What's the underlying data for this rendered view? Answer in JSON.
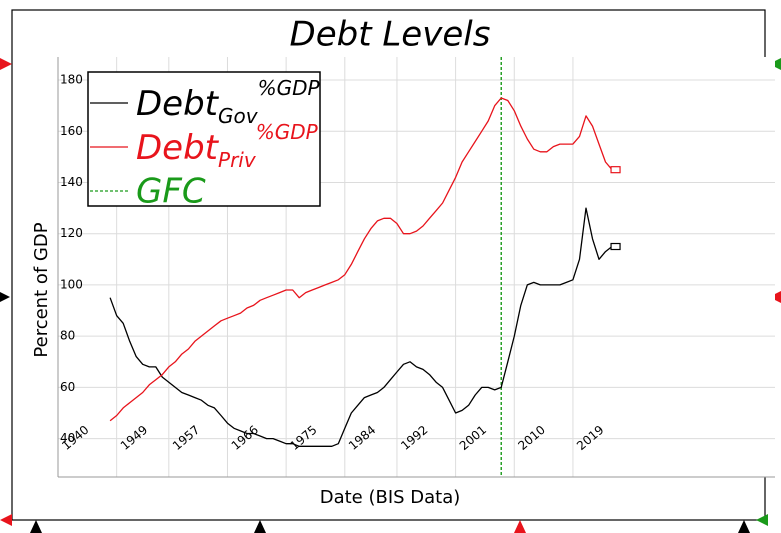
{
  "chart_data": {
    "type": "line",
    "title": "Debt Levels",
    "x_label": "Date (BIS Data)",
    "y_label": "Percent of GDP",
    "xlim": [
      1940,
      2050
    ],
    "xticks": [
      1940,
      1949,
      1957,
      1966,
      1975,
      1984,
      1992,
      2001,
      2010,
      2019
    ],
    "ylim": [
      25,
      189
    ],
    "yticks": [
      40,
      60,
      80,
      100,
      120,
      140,
      160,
      180
    ],
    "grid": true,
    "legend": "top-left",
    "x": [
      1948,
      1949,
      1950,
      1951,
      1952,
      1953,
      1954,
      1955,
      1956,
      1957,
      1958,
      1959,
      1960,
      1961,
      1962,
      1963,
      1964,
      1965,
      1966,
      1967,
      1968,
      1969,
      1970,
      1971,
      1972,
      1973,
      1974,
      1975,
      1976,
      1977,
      1978,
      1979,
      1980,
      1981,
      1982,
      1983,
      1984,
      1985,
      1986,
      1987,
      1988,
      1989,
      1990,
      1991,
      1992,
      1993,
      1994,
      1995,
      1996,
      1997,
      1998,
      1999,
      2000,
      2001,
      2002,
      2003,
      2004,
      2005,
      2006,
      2007,
      2008,
      2009,
      2010,
      2011,
      2012,
      2013,
      2014,
      2015,
      2016,
      2017,
      2018,
      2019,
      2020,
      2021,
      2022,
      2023,
      2024,
      2025
    ],
    "series": [
      {
        "name": {
          "text": "Debt",
          "sub": "Gov",
          "sup": "%GDP"
        },
        "color": "#000000",
        "values": [
          95,
          88,
          85,
          78,
          72,
          69,
          68,
          68,
          64,
          62,
          60,
          58,
          57,
          56,
          55,
          53,
          52,
          49,
          46,
          44,
          43,
          42,
          42,
          41,
          40,
          40,
          39,
          38,
          38,
          37,
          37,
          37,
          37,
          37,
          37,
          38,
          44,
          50,
          53,
          56,
          57,
          58,
          60,
          63,
          66,
          69,
          70,
          68,
          67,
          65,
          62,
          60,
          55,
          50,
          51,
          53,
          57,
          60,
          60,
          59,
          60,
          70,
          80,
          92,
          100,
          101,
          100,
          100,
          100,
          100,
          101,
          102,
          110,
          130,
          118,
          110,
          113,
          115
        ]
      },
      {
        "name": {
          "text": "Debt",
          "sub": "Priv",
          "sup": "%GDP"
        },
        "color": "#e8141c",
        "values": [
          47,
          49,
          52,
          54,
          56,
          58,
          61,
          63,
          65,
          68,
          70,
          73,
          75,
          78,
          80,
          82,
          84,
          86,
          87,
          88,
          89,
          91,
          92,
          94,
          95,
          96,
          97,
          98,
          98,
          95,
          97,
          98,
          99,
          100,
          101,
          102,
          104,
          108,
          113,
          118,
          122,
          125,
          126,
          126,
          124,
          120,
          120,
          121,
          123,
          126,
          129,
          132,
          137,
          142,
          148,
          152,
          156,
          160,
          164,
          170,
          173,
          172,
          168,
          162,
          157,
          153,
          152,
          152,
          154,
          155,
          155,
          155,
          158,
          166,
          162,
          155,
          148,
          145
        ]
      }
    ],
    "markers": [
      {
        "name": "GFC",
        "x": 2008,
        "color": "#1a9a1a"
      }
    ]
  }
}
